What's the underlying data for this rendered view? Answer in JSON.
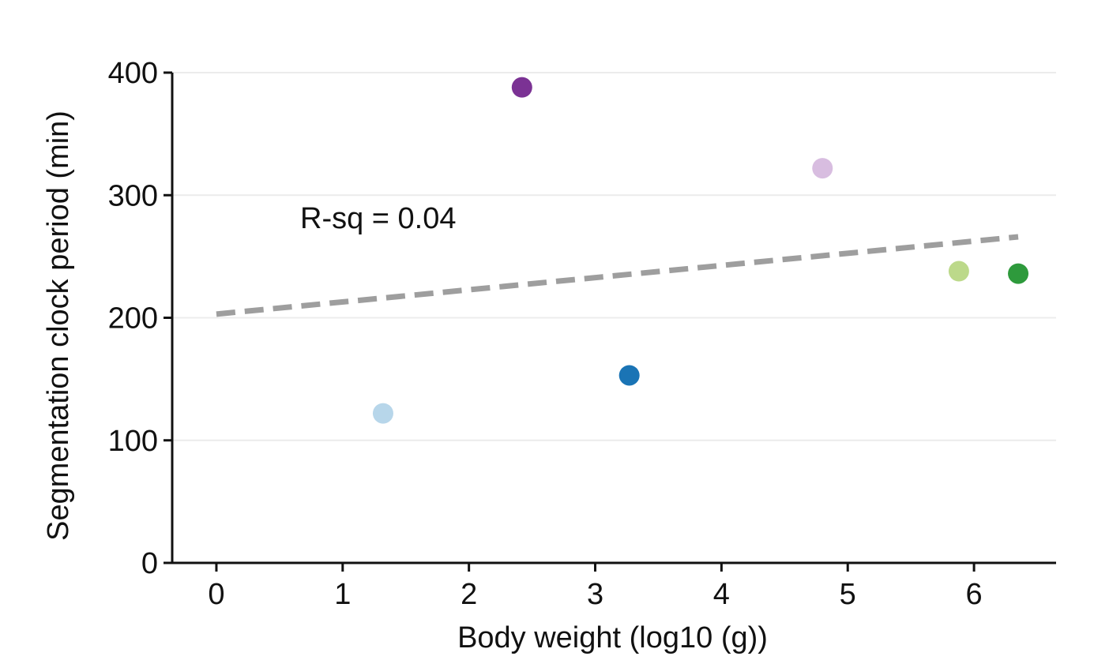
{
  "chart_data": {
    "type": "scatter",
    "title": "",
    "xlabel": "Body weight (log10 (g))",
    "ylabel": "Segmentation clock period (min)",
    "xlim": [
      -0.35,
      6.65
    ],
    "ylim": [
      0,
      400
    ],
    "x_ticks": [
      0,
      1,
      2,
      3,
      4,
      5,
      6
    ],
    "x_tick_labels": [
      "0",
      "1",
      "2",
      "3",
      "4",
      "5",
      "6"
    ],
    "y_ticks": [
      0,
      100,
      200,
      300,
      400
    ],
    "y_tick_labels": [
      "0",
      "100",
      "200",
      "300",
      "400"
    ],
    "grid": true,
    "points": [
      {
        "x": 1.32,
        "y": 122,
        "color": "#b7d6ea"
      },
      {
        "x": 2.42,
        "y": 388,
        "color": "#7b3294"
      },
      {
        "x": 3.27,
        "y": 153,
        "color": "#1a74b5"
      },
      {
        "x": 4.8,
        "y": 322,
        "color": "#d8bde0"
      },
      {
        "x": 5.88,
        "y": 238,
        "color": "#bcd98a"
      },
      {
        "x": 6.35,
        "y": 236,
        "color": "#2e9a3c"
      }
    ],
    "trendline": {
      "x_start": 0.0,
      "y_start": 203,
      "x_end": 6.35,
      "y_end": 266,
      "color": "#9e9e9e",
      "style": "dashed"
    },
    "annotation": "R-sq = 0.04"
  }
}
